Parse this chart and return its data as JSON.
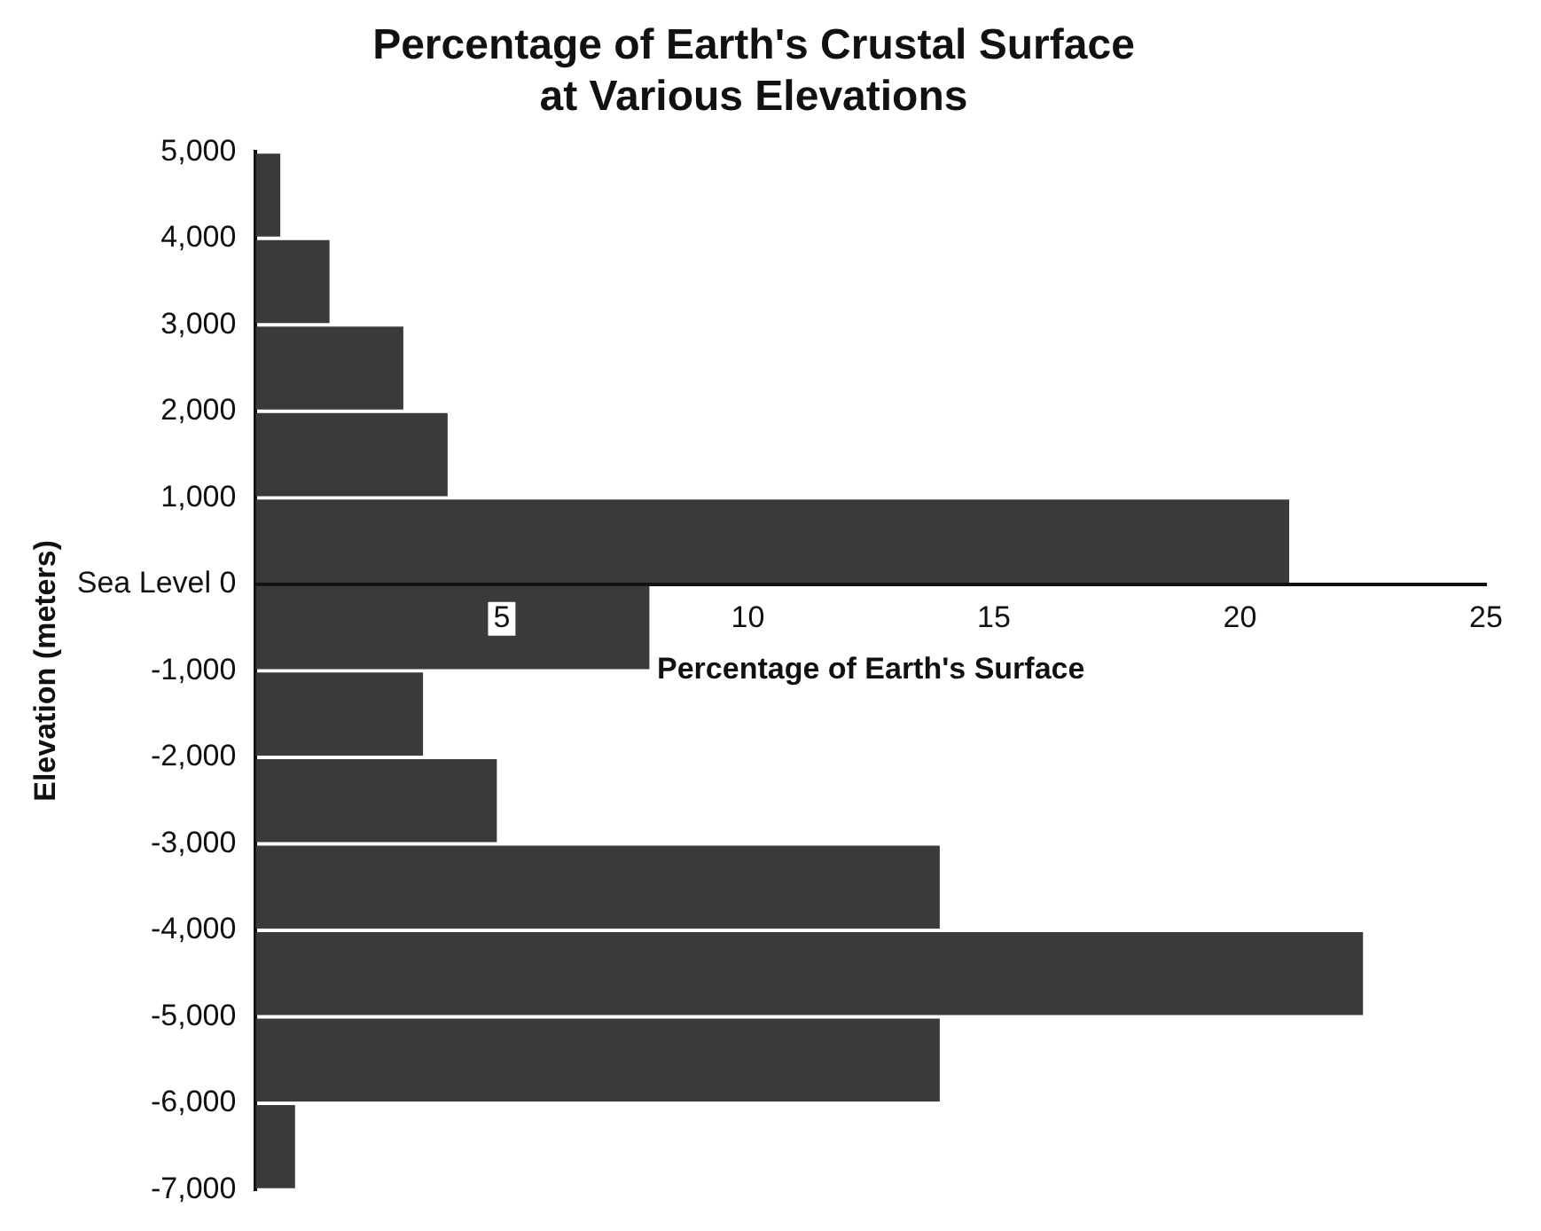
{
  "chart_data": {
    "type": "histogram",
    "orientation": "horizontal",
    "title": [
      "Percentage of Earth's Crustal Surface",
      "at Various Elevations"
    ],
    "xlabel": "Percentage of Earth's Surface",
    "ylabel": "Elevation (meters)",
    "bins": [
      -7000,
      -6000,
      -5000,
      -4000,
      -3000,
      -2000,
      -1000,
      0,
      1000,
      2000,
      3000,
      4000,
      5000
    ],
    "values": [
      0.8,
      13.9,
      22.5,
      13.9,
      4.9,
      3.4,
      8.0,
      21.0,
      3.9,
      3.0,
      1.5,
      0.5
    ],
    "color": "#3a3a3a",
    "xlim": [
      0,
      25
    ],
    "xticks": [
      5,
      10,
      15,
      20,
      25
    ],
    "ylim": [
      -7000,
      5000
    ],
    "yticks": [
      {
        "value": -7000,
        "label": "-7,000"
      },
      {
        "value": -6000,
        "label": "-6,000"
      },
      {
        "value": -5000,
        "label": "-5,000"
      },
      {
        "value": -4000,
        "label": "-4,000"
      },
      {
        "value": -3000,
        "label": "-3,000"
      },
      {
        "value": -2000,
        "label": "-2,000"
      },
      {
        "value": -1000,
        "label": "-1,000"
      },
      {
        "value": 0,
        "label": "Sea Level 0"
      },
      {
        "value": 1000,
        "label": "1,000"
      },
      {
        "value": 2000,
        "label": "2,000"
      },
      {
        "value": 3000,
        "label": "3,000"
      },
      {
        "value": 4000,
        "label": "4,000"
      },
      {
        "value": 5000,
        "label": "5,000"
      }
    ],
    "grid": false,
    "legend": false
  }
}
